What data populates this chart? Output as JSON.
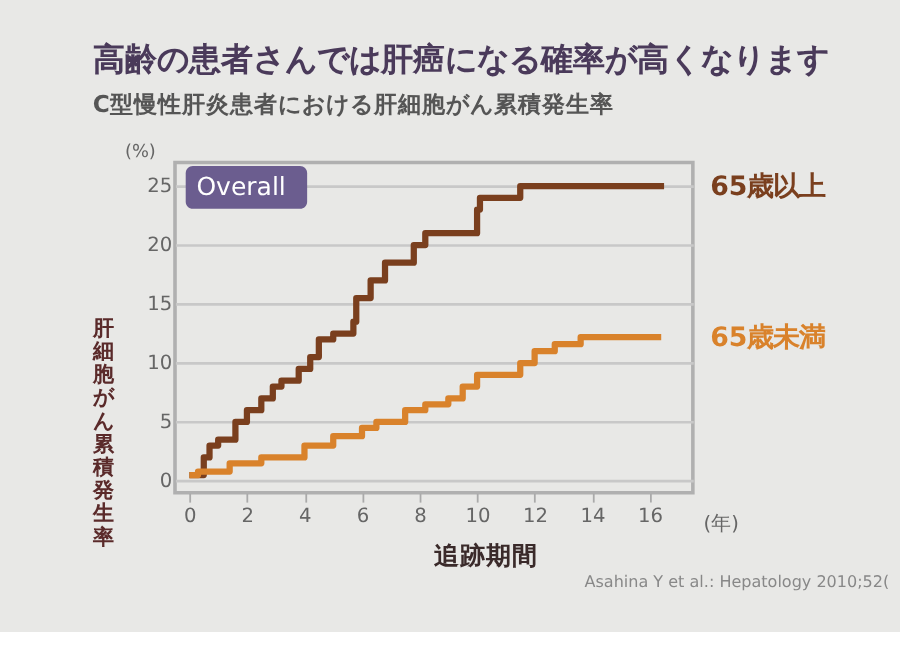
{
  "chart_data": {
    "type": "step",
    "title": "高齢の患者さんでは肝癌になる確率が高くなります",
    "subtitle": "C型慢性肝炎患者における肝細胞がん累積発生率",
    "xlabel": "追跡期間",
    "ylabel": "肝細胞がん累積発生率",
    "annotations": [
      "Overall",
      "(%)",
      "(年)",
      "Asahina Y et al.: Hepatology 2010;52("
    ],
    "series": [
      {
        "name": "65歳以上",
        "color": "#7a3f1e",
        "x": [
          0,
          0.5,
          0.7,
          1,
          1.6,
          2,
          2.5,
          2.9,
          3.2,
          3.8,
          4.2,
          4.5,
          5,
          5.7,
          5.8,
          6.3,
          6.8,
          7.8,
          8.2,
          10,
          10.1,
          11.5,
          16.5
        ],
        "values": [
          0.5,
          2,
          3,
          3.5,
          5,
          6,
          7,
          8,
          8.5,
          9.5,
          10.5,
          12,
          12.5,
          13.5,
          15.5,
          17,
          18.5,
          20,
          21,
          23,
          24,
          25,
          25
        ]
      },
      {
        "name": "65歳未満",
        "color": "#d9822b",
        "x": [
          0,
          0.3,
          1.4,
          2.5,
          4,
          5,
          6,
          6.5,
          7.5,
          8.2,
          9,
          9.5,
          10,
          11.5,
          12,
          12.7,
          13.6,
          16.4
        ],
        "values": [
          0.5,
          0.8,
          1.5,
          2,
          3,
          3.8,
          4.5,
          5,
          6,
          6.5,
          7,
          8,
          9,
          10,
          11,
          11.6,
          12.2,
          12.2
        ]
      }
    ],
    "xlim": [
      -0.5,
      17.5
    ],
    "ylim": [
      -1,
      27
    ],
    "xticks": [
      0,
      2,
      4,
      6,
      8,
      10,
      12,
      14,
      16
    ],
    "yticks": [
      0,
      5,
      10,
      15,
      20,
      25
    ],
    "grid": "y",
    "legend": false,
    "marker": "none",
    "line_style": "solid"
  }
}
